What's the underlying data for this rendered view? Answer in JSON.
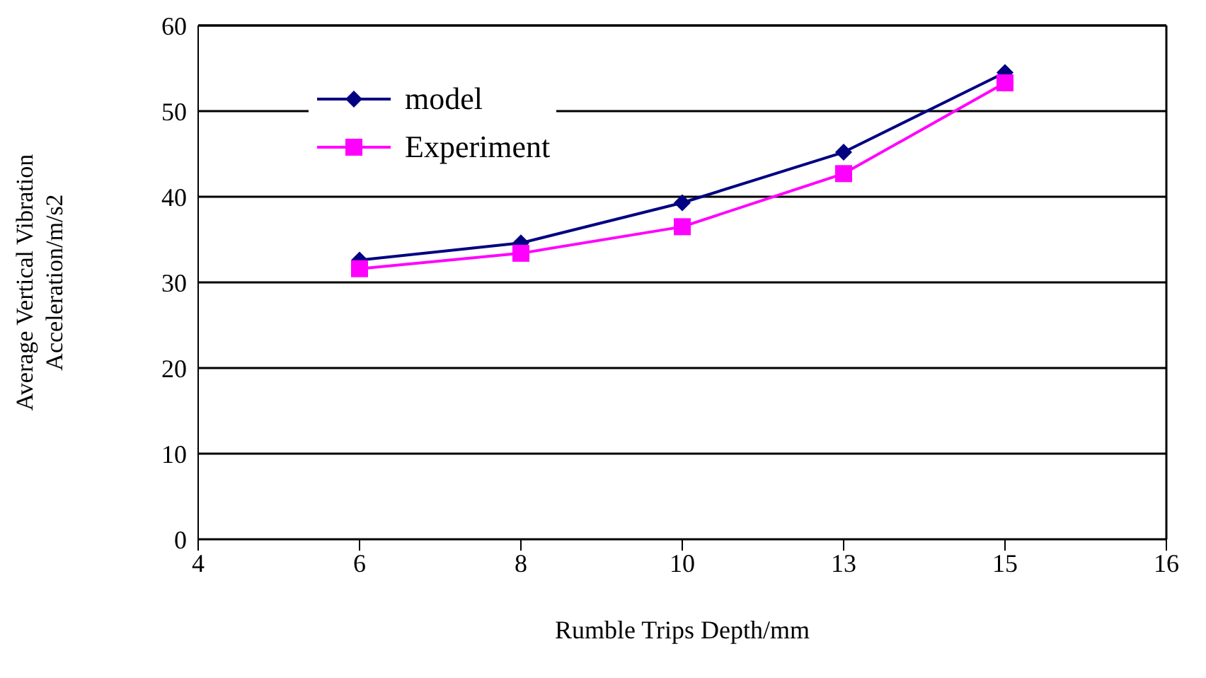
{
  "chart_data": {
    "type": "line",
    "xlabel": "Rumble Trips Depth/mm",
    "ylabel": "Average Vertical Vibration Acceleration/m/s2",
    "categories": [
      "4",
      "6",
      "8",
      "10",
      "13",
      "15",
      "16"
    ],
    "series": [
      {
        "name": "model",
        "color": "#000080",
        "marker": "diamond",
        "values": [
          null,
          32.6,
          34.6,
          39.3,
          45.2,
          54.5,
          null
        ]
      },
      {
        "name": "Experiment",
        "color": "#ff00ff",
        "marker": "square",
        "values": [
          null,
          31.6,
          33.4,
          36.5,
          42.7,
          53.3,
          null
        ]
      }
    ],
    "ylim": [
      0,
      60
    ],
    "yticks": [
      0,
      10,
      20,
      30,
      40,
      50,
      60
    ],
    "grid": "y",
    "legend": "top left",
    "line_style": "solid"
  }
}
